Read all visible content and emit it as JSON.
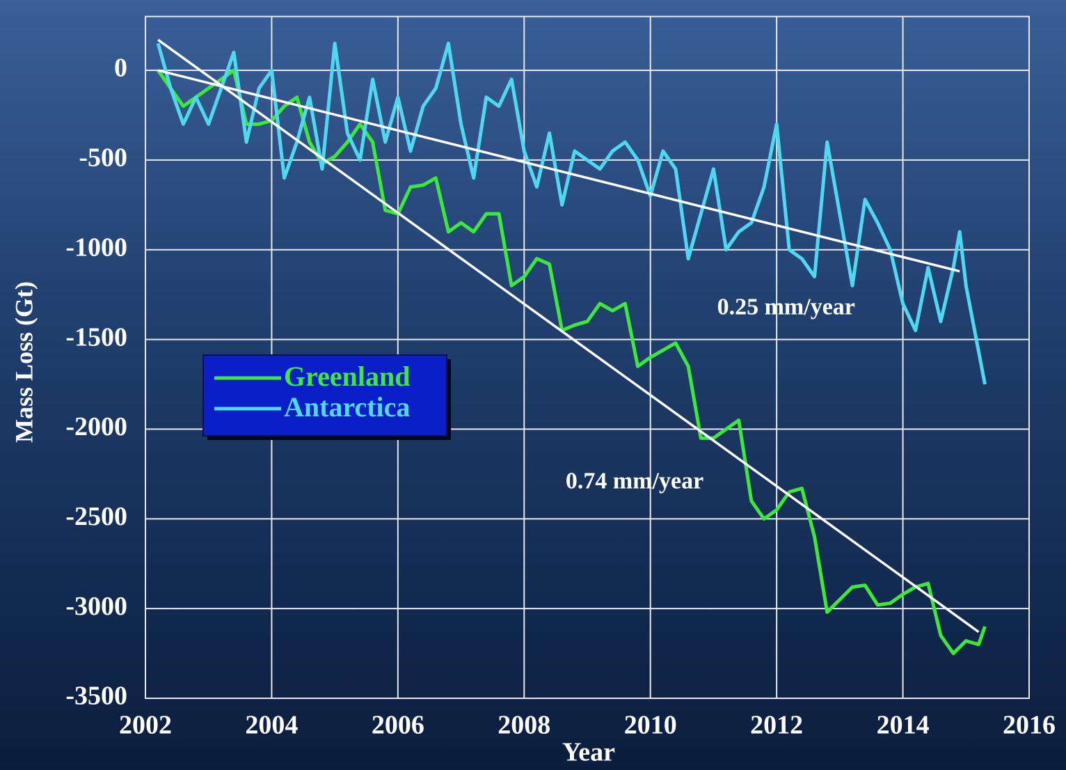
{
  "chart_data": {
    "type": "line",
    "xlabel": "Year",
    "ylabel": "Mass Loss (Gt)",
    "xlim": [
      2002,
      2016
    ],
    "ylim": [
      -3500,
      300
    ],
    "xticks": [
      2002,
      2004,
      2006,
      2008,
      2010,
      2012,
      2014,
      2016
    ],
    "yticks": [
      0,
      -500,
      -1000,
      -1500,
      -2000,
      -2500,
      -3000,
      -3500
    ],
    "grid": true,
    "legend": "left",
    "series": [
      {
        "name": "Greenland",
        "color": "#3ee83a",
        "x": [
          2002.2,
          2002.4,
          2002.6,
          2002.8,
          2003.0,
          2003.2,
          2003.4,
          2003.6,
          2003.8,
          2004.0,
          2004.2,
          2004.4,
          2004.6,
          2004.8,
          2005.0,
          2005.2,
          2005.4,
          2005.6,
          2005.8,
          2006.0,
          2006.2,
          2006.4,
          2006.6,
          2006.8,
          2007.0,
          2007.2,
          2007.4,
          2007.6,
          2007.8,
          2008.0,
          2008.2,
          2008.4,
          2008.6,
          2008.8,
          2009.0,
          2009.2,
          2009.4,
          2009.6,
          2009.8,
          2010.0,
          2010.2,
          2010.4,
          2010.6,
          2010.8,
          2011.0,
          2011.2,
          2011.4,
          2011.6,
          2011.8,
          2012.0,
          2012.2,
          2012.4,
          2012.6,
          2012.8,
          2013.0,
          2013.2,
          2013.4,
          2013.6,
          2013.8,
          2014.0,
          2014.2,
          2014.4,
          2014.6,
          2014.8,
          2015.0,
          2015.2,
          2015.3
        ],
        "values": [
          0,
          -100,
          -200,
          -150,
          -100,
          -50,
          0,
          -300,
          -300,
          -280,
          -200,
          -150,
          -400,
          -520,
          -480,
          -400,
          -300,
          -400,
          -780,
          -800,
          -650,
          -640,
          -600,
          -900,
          -850,
          -900,
          -800,
          -800,
          -1200,
          -1150,
          -1050,
          -1080,
          -1450,
          -1420,
          -1400,
          -1300,
          -1340,
          -1300,
          -1650,
          -1600,
          -1560,
          -1520,
          -1650,
          -2050,
          -2050,
          -2000,
          -1950,
          -2400,
          -2500,
          -2450,
          -2350,
          -2330,
          -2600,
          -3020,
          -2950,
          -2880,
          -2870,
          -2980,
          -2970,
          -2920,
          -2880,
          -2860,
          -3150,
          -3250,
          -3180,
          -3200,
          -3100
        ]
      },
      {
        "name": "Antarctica",
        "color": "#4fd8f0",
        "x": [
          2002.2,
          2002.4,
          2002.6,
          2002.8,
          2003.0,
          2003.2,
          2003.4,
          2003.6,
          2003.8,
          2004.0,
          2004.2,
          2004.4,
          2004.6,
          2004.8,
          2005.0,
          2005.2,
          2005.4,
          2005.6,
          2005.8,
          2006.0,
          2006.2,
          2006.4,
          2006.6,
          2006.8,
          2007.0,
          2007.2,
          2007.4,
          2007.6,
          2007.8,
          2008.0,
          2008.2,
          2008.4,
          2008.6,
          2008.8,
          2009.0,
          2009.2,
          2009.4,
          2009.6,
          2009.8,
          2010.0,
          2010.2,
          2010.4,
          2010.6,
          2010.8,
          2011.0,
          2011.2,
          2011.4,
          2011.6,
          2011.8,
          2012.0,
          2012.2,
          2012.4,
          2012.6,
          2012.8,
          2013.0,
          2013.2,
          2013.4,
          2013.6,
          2013.8,
          2014.0,
          2014.2,
          2014.4,
          2014.6,
          2014.8,
          2014.9,
          2015.0,
          2015.3
        ],
        "values": [
          150,
          -100,
          -300,
          -150,
          -300,
          -100,
          100,
          -400,
          -100,
          0,
          -600,
          -400,
          -150,
          -550,
          150,
          -350,
          -500,
          -50,
          -400,
          -150,
          -450,
          -200,
          -100,
          150,
          -300,
          -600,
          -150,
          -200,
          -50,
          -450,
          -650,
          -350,
          -750,
          -450,
          -500,
          -550,
          -450,
          -400,
          -500,
          -700,
          -450,
          -550,
          -1050,
          -800,
          -550,
          -1000,
          -900,
          -850,
          -650,
          -300,
          -1000,
          -1050,
          -1150,
          -400,
          -800,
          -1200,
          -720,
          -850,
          -1000,
          -1300,
          -1450,
          -1100,
          -1400,
          -1100,
          -900,
          -1200,
          -1750
        ]
      }
    ],
    "trend_lines": [
      {
        "color": "#ffffff",
        "x": [
          2002.2,
          2015.2
        ],
        "values": [
          170,
          -3130
        ]
      },
      {
        "color": "#ffffff",
        "x": [
          2002.2,
          2014.9
        ],
        "values": [
          0,
          -1120
        ]
      }
    ],
    "annotations": [
      {
        "text": "0.25 mm/year",
        "x": 2012.15,
        "y": -1330
      },
      {
        "text": "0.74 mm/year",
        "x": 2009.75,
        "y": -2300
      }
    ]
  }
}
